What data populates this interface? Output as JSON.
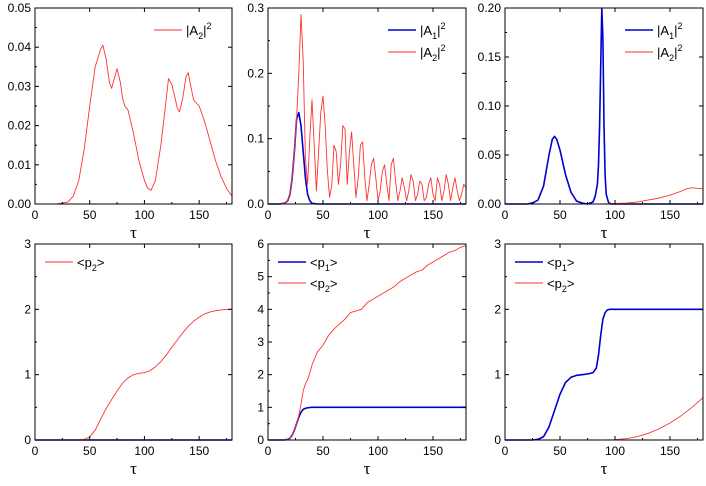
{
  "colors": {
    "blue": "#0000cc",
    "red": "#ff3333",
    "axis": "#000000"
  },
  "chart_data": [
    {
      "type": "line",
      "panel": "top-left",
      "xlabel": "τ",
      "xlim": [
        0,
        180
      ],
      "ylim": [
        0,
        0.05
      ],
      "xticks": [
        "0",
        "50",
        "100",
        "150"
      ],
      "yticks": [
        "0.00",
        "0.01",
        "0.02",
        "0.03",
        "0.04",
        "0.05"
      ],
      "legend": {
        "placement": "top-right",
        "entries": [
          {
            "text": "|A",
            "sub": "2",
            "close": "|",
            "sup": "2",
            "color": "red"
          }
        ]
      },
      "series": [
        {
          "color": "red",
          "width": 0.9,
          "x": [
            0,
            10,
            20,
            30,
            35,
            40,
            45,
            50,
            55,
            60,
            62,
            65,
            68,
            70,
            72,
            75,
            78,
            80,
            82,
            85,
            90,
            95,
            100,
            103,
            106,
            110,
            115,
            120,
            122,
            125,
            128,
            130,
            132,
            135,
            138,
            140,
            142,
            145,
            150,
            155,
            160,
            165,
            170,
            175,
            180
          ],
          "y": [
            0,
            0,
            0,
            0.0005,
            0.002,
            0.006,
            0.014,
            0.025,
            0.035,
            0.0395,
            0.0405,
            0.037,
            0.031,
            0.0295,
            0.0315,
            0.0345,
            0.031,
            0.027,
            0.025,
            0.024,
            0.018,
            0.011,
            0.006,
            0.004,
            0.0035,
            0.006,
            0.015,
            0.027,
            0.032,
            0.0305,
            0.027,
            0.0245,
            0.0235,
            0.027,
            0.0325,
            0.0335,
            0.0305,
            0.0265,
            0.025,
            0.021,
            0.016,
            0.011,
            0.007,
            0.004,
            0.002
          ]
        }
      ]
    },
    {
      "type": "line",
      "panel": "top-middle",
      "xlabel": "τ",
      "xlim": [
        0,
        180
      ],
      "ylim": [
        0,
        0.3
      ],
      "xticks": [
        "0",
        "50",
        "100",
        "150"
      ],
      "yticks": [
        "0.0",
        "0.1",
        "0.2",
        "0.3"
      ],
      "legend": {
        "placement": "top-right",
        "entries": [
          {
            "text": "|A",
            "sub": "1",
            "close": "|",
            "sup": "2",
            "color": "blue"
          },
          {
            "text": "|A",
            "sub": "2",
            "close": "|",
            "sup": "2",
            "color": "red"
          }
        ]
      },
      "series": [
        {
          "color": "blue",
          "width": 1.6,
          "x": [
            0,
            10,
            15,
            18,
            20,
            22,
            24,
            26,
            28,
            30,
            32,
            34,
            36,
            38,
            40,
            45,
            50,
            180
          ],
          "y": [
            0,
            0,
            0.001,
            0.005,
            0.015,
            0.04,
            0.08,
            0.13,
            0.14,
            0.12,
            0.08,
            0.04,
            0.015,
            0.005,
            0.001,
            0,
            0,
            0
          ]
        },
        {
          "color": "red",
          "width": 0.9,
          "x": [
            0,
            10,
            15,
            18,
            20,
            22,
            24,
            26,
            28,
            30,
            32,
            34,
            36,
            38,
            40,
            42,
            44,
            46,
            48,
            50,
            52,
            54,
            56,
            58,
            60,
            62,
            64,
            66,
            68,
            70,
            72,
            74,
            76,
            78,
            80,
            82,
            84,
            86,
            88,
            90,
            92,
            94,
            96,
            98,
            100,
            102,
            104,
            106,
            108,
            110,
            112,
            114,
            116,
            118,
            120,
            122,
            124,
            126,
            128,
            130,
            132,
            134,
            136,
            138,
            140,
            142,
            144,
            146,
            148,
            150,
            152,
            154,
            156,
            158,
            160,
            162,
            164,
            166,
            168,
            170,
            172,
            174,
            176,
            178,
            180
          ],
          "y": [
            0,
            0,
            0.001,
            0.005,
            0.015,
            0.04,
            0.08,
            0.13,
            0.2,
            0.29,
            0.22,
            0.07,
            0.03,
            0.1,
            0.16,
            0.09,
            0.02,
            0.08,
            0.14,
            0.165,
            0.12,
            0.05,
            0.01,
            0.03,
            0.09,
            0.08,
            0.03,
            0.06,
            0.12,
            0.115,
            0.03,
            0.08,
            0.11,
            0.06,
            0.01,
            0.04,
            0.09,
            0.095,
            0.04,
            0.005,
            0.03,
            0.06,
            0.07,
            0.04,
            0.005,
            0.02,
            0.05,
            0.06,
            0.03,
            0.005,
            0.06,
            0.07,
            0.035,
            0.005,
            0.02,
            0.04,
            0.025,
            0.005,
            0.02,
            0.045,
            0.035,
            0.005,
            0.015,
            0.035,
            0.03,
            0.005,
            0.01,
            0.03,
            0.04,
            0.015,
            0.005,
            0.04,
            0.03,
            0.005,
            0.02,
            0.045,
            0.03,
            0.005,
            0.025,
            0.04,
            0.02,
            0.005,
            0.015,
            0.03,
            0.025
          ]
        }
      ]
    },
    {
      "type": "line",
      "panel": "top-right",
      "xlabel": "τ",
      "xlim": [
        0,
        180
      ],
      "ylim": [
        0,
        0.2
      ],
      "xticks": [
        "0",
        "50",
        "100",
        "150"
      ],
      "yticks": [
        "0.00",
        "0.05",
        "0.10",
        "0.15",
        "0.20"
      ],
      "legend": {
        "placement": "top-right",
        "entries": [
          {
            "text": "|A",
            "sub": "1",
            "close": "|",
            "sup": "2",
            "color": "blue"
          },
          {
            "text": "|A",
            "sub": "2",
            "close": "|",
            "sup": "2",
            "color": "red"
          }
        ]
      },
      "series": [
        {
          "color": "blue",
          "width": 1.6,
          "x": [
            0,
            20,
            25,
            30,
            35,
            40,
            43,
            45,
            47,
            50,
            55,
            60,
            65,
            70,
            75,
            80,
            82,
            84,
            85,
            86,
            87,
            88,
            89,
            90,
            91,
            92,
            94,
            96,
            100,
            180
          ],
          "y": [
            0,
            0,
            0.001,
            0.004,
            0.018,
            0.05,
            0.066,
            0.069,
            0.066,
            0.055,
            0.03,
            0.012,
            0.003,
            0.001,
            0,
            0.002,
            0.008,
            0.02,
            0.04,
            0.08,
            0.14,
            0.2,
            0.17,
            0.08,
            0.03,
            0.01,
            0.002,
            0,
            0,
            0
          ]
        },
        {
          "color": "red",
          "width": 0.9,
          "x": [
            0,
            90,
            100,
            110,
            120,
            130,
            140,
            150,
            160,
            165,
            170,
            175,
            180
          ],
          "y": [
            0,
            0,
            0.0005,
            0.001,
            0.002,
            0.004,
            0.006,
            0.009,
            0.013,
            0.0155,
            0.0165,
            0.016,
            0.0155
          ]
        }
      ]
    },
    {
      "type": "line",
      "panel": "bottom-left",
      "xlabel": "τ",
      "xlim": [
        0,
        180
      ],
      "ylim": [
        0,
        3
      ],
      "xticks": [
        "0",
        "50",
        "100",
        "150"
      ],
      "yticks": [
        "0",
        "1",
        "2",
        "3"
      ],
      "legend": {
        "placement": "top-left",
        "entries": [
          {
            "text": "<p",
            "sub": "2",
            "close": ">",
            "sup": "",
            "color": "red"
          }
        ]
      },
      "series": [
        {
          "color": "blue",
          "width": 1.6,
          "x": [
            0,
            180
          ],
          "y": [
            0,
            0
          ]
        },
        {
          "color": "red",
          "width": 0.9,
          "x": [
            0,
            40,
            45,
            50,
            55,
            60,
            65,
            70,
            75,
            80,
            85,
            90,
            95,
            100,
            105,
            110,
            115,
            120,
            125,
            130,
            135,
            140,
            145,
            150,
            155,
            160,
            165,
            170,
            175,
            180
          ],
          "y": [
            0,
            0,
            0.01,
            0.05,
            0.15,
            0.32,
            0.48,
            0.62,
            0.75,
            0.87,
            0.95,
            1.0,
            1.02,
            1.03,
            1.06,
            1.12,
            1.2,
            1.3,
            1.42,
            1.53,
            1.64,
            1.74,
            1.82,
            1.88,
            1.93,
            1.96,
            1.98,
            1.99,
            2.0,
            2.0
          ]
        }
      ]
    },
    {
      "type": "line",
      "panel": "bottom-middle",
      "xlabel": "τ",
      "xlim": [
        0,
        180
      ],
      "ylim": [
        0,
        6
      ],
      "xticks": [
        "0",
        "50",
        "100",
        "150"
      ],
      "yticks": [
        "0",
        "1",
        "2",
        "3",
        "4",
        "5",
        "6"
      ],
      "legend": {
        "placement": "top-left",
        "entries": [
          {
            "text": "<p",
            "sub": "1",
            "close": ">",
            "sup": "",
            "color": "blue"
          },
          {
            "text": "<p",
            "sub": "2",
            "close": ">",
            "sup": "",
            "color": "red"
          }
        ]
      },
      "series": [
        {
          "color": "blue",
          "width": 1.6,
          "x": [
            0,
            15,
            18,
            20,
            22,
            24,
            26,
            28,
            30,
            32,
            35,
            38,
            40,
            45,
            180
          ],
          "y": [
            0,
            0,
            0.02,
            0.06,
            0.15,
            0.3,
            0.5,
            0.7,
            0.85,
            0.94,
            0.98,
            0.995,
            1.0,
            1.0,
            1.0
          ]
        },
        {
          "color": "red",
          "width": 0.9,
          "x": [
            0,
            15,
            18,
            20,
            22,
            24,
            26,
            28,
            30,
            32,
            34,
            36,
            38,
            40,
            45,
            50,
            55,
            60,
            65,
            70,
            75,
            80,
            85,
            90,
            95,
            100,
            105,
            110,
            115,
            120,
            125,
            130,
            135,
            140,
            145,
            150,
            155,
            160,
            165,
            170,
            175,
            180
          ],
          "y": [
            0,
            0,
            0.02,
            0.06,
            0.15,
            0.3,
            0.5,
            0.75,
            1.1,
            1.5,
            1.72,
            1.85,
            2.05,
            2.3,
            2.7,
            2.9,
            3.2,
            3.4,
            3.55,
            3.7,
            3.9,
            3.95,
            4.0,
            4.2,
            4.3,
            4.4,
            4.5,
            4.6,
            4.7,
            4.85,
            4.95,
            5.05,
            5.15,
            5.2,
            5.35,
            5.45,
            5.55,
            5.65,
            5.75,
            5.8,
            5.9,
            5.95
          ]
        }
      ]
    },
    {
      "type": "line",
      "panel": "bottom-right",
      "xlabel": "τ",
      "xlim": [
        0,
        180
      ],
      "ylim": [
        0,
        3
      ],
      "xticks": [
        "0",
        "50",
        "100",
        "150"
      ],
      "yticks": [
        "0",
        "1",
        "2",
        "3"
      ],
      "legend": {
        "placement": "top-left",
        "entries": [
          {
            "text": "<p",
            "sub": "1",
            "close": ">",
            "sup": "",
            "color": "blue"
          },
          {
            "text": "<p",
            "sub": "2",
            "close": ">",
            "sup": "",
            "color": "red"
          }
        ]
      },
      "series": [
        {
          "color": "blue",
          "width": 1.6,
          "x": [
            0,
            25,
            30,
            35,
            40,
            45,
            50,
            55,
            60,
            65,
            70,
            75,
            80,
            83,
            85,
            87,
            89,
            91,
            93,
            95,
            100,
            180
          ],
          "y": [
            0,
            0,
            0.01,
            0.05,
            0.2,
            0.45,
            0.7,
            0.88,
            0.96,
            0.99,
            1.0,
            1.01,
            1.03,
            1.1,
            1.3,
            1.6,
            1.85,
            1.95,
            1.99,
            2.0,
            2.0,
            2.0
          ]
        },
        {
          "color": "red",
          "width": 0.9,
          "x": [
            0,
            90,
            100,
            110,
            120,
            130,
            140,
            150,
            160,
            170,
            180
          ],
          "y": [
            0,
            0,
            0.005,
            0.02,
            0.05,
            0.1,
            0.17,
            0.26,
            0.37,
            0.5,
            0.65
          ]
        }
      ]
    }
  ]
}
